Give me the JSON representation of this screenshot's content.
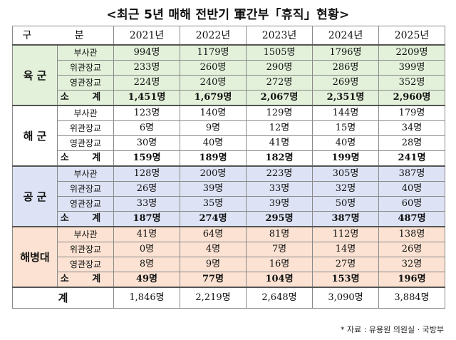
{
  "title": "<최근 5년 매해 전반기 軍간부「휴직」현황>",
  "header": {
    "label": "구 분",
    "years": [
      "2021년",
      "2022년",
      "2023년",
      "2024년",
      "2025년"
    ]
  },
  "groups": [
    {
      "name": "육 군",
      "color": "#e3f1da",
      "rows": [
        {
          "label": "부사관",
          "values": [
            "994명",
            "1179명",
            "1505명",
            "1796명",
            "2209명"
          ]
        },
        {
          "label": "위관장교",
          "values": [
            "233명",
            "260명",
            "290명",
            "286명",
            "399명"
          ]
        },
        {
          "label": "영관장교",
          "values": [
            "224명",
            "240명",
            "272명",
            "269명",
            "352명"
          ]
        }
      ],
      "subtotal": {
        "label": "소 계",
        "values": [
          "1,451명",
          "1,679명",
          "2,067명",
          "2,351명",
          "2,960명"
        ]
      }
    },
    {
      "name": "해 군",
      "color": "#ffffff",
      "rows": [
        {
          "label": "부사관",
          "values": [
            "123명",
            "140명",
            "129명",
            "144명",
            "179명"
          ]
        },
        {
          "label": "위관장교",
          "values": [
            "6명",
            "9명",
            "12명",
            "15명",
            "34명"
          ]
        },
        {
          "label": "영관장교",
          "values": [
            "30명",
            "40명",
            "41명",
            "40명",
            "28명"
          ]
        }
      ],
      "subtotal": {
        "label": "소 계",
        "values": [
          "159명",
          "189명",
          "182명",
          "199명",
          "241명"
        ]
      }
    },
    {
      "name": "공 군",
      "color": "#dde3f5",
      "rows": [
        {
          "label": "부사관",
          "values": [
            "128명",
            "200명",
            "223명",
            "305명",
            "387명"
          ]
        },
        {
          "label": "위관장교",
          "values": [
            "26명",
            "39명",
            "33명",
            "32명",
            "40명"
          ]
        },
        {
          "label": "영관장교",
          "values": [
            "33명",
            "35명",
            "39명",
            "50명",
            "60명"
          ]
        }
      ],
      "subtotal": {
        "label": "소 계",
        "values": [
          "187명",
          "274명",
          "295명",
          "387명",
          "487명"
        ]
      }
    },
    {
      "name": "해병대",
      "color": "#fbe2d2",
      "rows": [
        {
          "label": "부사관",
          "values": [
            "41명",
            "64명",
            "81명",
            "112명",
            "138명"
          ]
        },
        {
          "label": "위관장교",
          "values": [
            "0명",
            "4명",
            "7명",
            "14명",
            "26명"
          ]
        },
        {
          "label": "영관장교",
          "values": [
            "8명",
            "9명",
            "16명",
            "27명",
            "32명"
          ]
        }
      ],
      "subtotal": {
        "label": "소 계",
        "values": [
          "49명",
          "77명",
          "104명",
          "153명",
          "196명"
        ]
      }
    }
  ],
  "total": {
    "label": "계",
    "values": [
      "1,846명",
      "2,219명",
      "2,648명",
      "3,090명",
      "3,884명"
    ]
  },
  "source": "* 자료 : 유용원 의원실 · 국방부"
}
